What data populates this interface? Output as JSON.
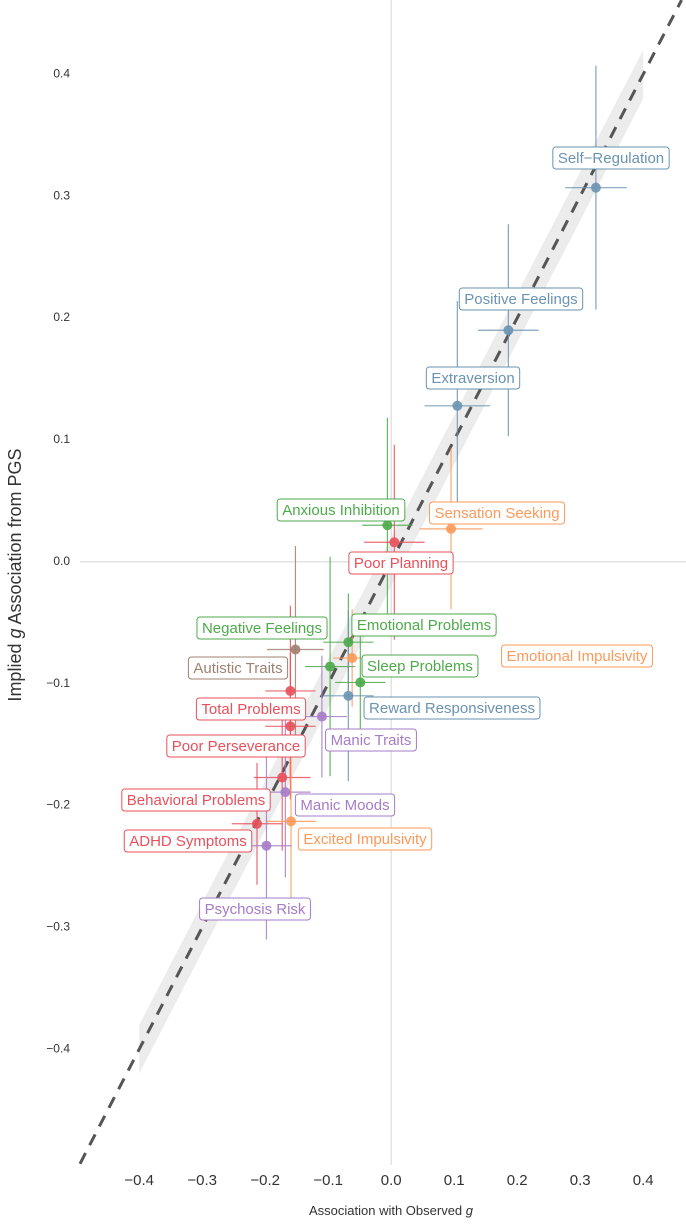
{
  "chart_data": {
    "type": "scatter",
    "x_label": "Association with Observed g",
    "y_label": "Implied g Association from PGS",
    "xlim": [
      -0.494,
      0.468
    ],
    "ylim": [
      -0.495,
      0.461
    ],
    "xticks": [
      {
        "value": -0.4,
        "label": "−0.4"
      },
      {
        "value": -0.3,
        "label": "−0.3"
      },
      {
        "value": -0.2,
        "label": "−0.2"
      },
      {
        "value": -0.1,
        "label": "−0.1"
      },
      {
        "value": 0,
        "label": "0.0"
      },
      0.1,
      0.2,
      0.3,
      0.4
    ],
    "yticks": [
      {
        "value": -0.4,
        "label": "−0.4"
      },
      {
        "value": -0.3,
        "label": "−0.3"
      },
      {
        "value": -0.2,
        "label": "−0.2"
      },
      {
        "value": -0.1,
        "label": "−0.1"
      },
      {
        "value": 0,
        "label": "0.0"
      },
      0.1,
      0.2,
      0.3,
      0.4
    ],
    "zero_lines": true,
    "fit": {
      "slope": 1,
      "intercept": 0,
      "band": 0.02,
      "band_x": [
        -0.4,
        0.4
      ]
    },
    "points": [
      {
        "name": "Self−Regulation",
        "color": "#6a93b2",
        "x": 0.325,
        "y": 0.307,
        "xerr": 0.049,
        "yerr": 0.1
      },
      {
        "name": "Positive Feelings",
        "color": "#6a93b2",
        "x": 0.186,
        "y": 0.19,
        "xerr": 0.048,
        "yerr": 0.087
      },
      {
        "name": "Extraversion",
        "color": "#6a93b2",
        "x": 0.105,
        "y": 0.128,
        "xerr": 0.052,
        "yerr": 0.086
      },
      {
        "name": "Anxious Inhibition",
        "color": "#4daa4a",
        "x": -0.006,
        "y": 0.03,
        "xerr": 0.04,
        "yerr": 0.088
      },
      {
        "name": "Sensation Seeking",
        "color": "#fb9a5a",
        "x": 0.095,
        "y": 0.027,
        "xerr": 0.05,
        "yerr": 0.066
      },
      {
        "name": "Poor Planning",
        "color": "#e8505b",
        "x": 0.005,
        "y": 0.016,
        "xerr": 0.048,
        "yerr": 0.08
      },
      {
        "name": "Emotional Problems",
        "color": "#4daa4a",
        "x": -0.068,
        "y": -0.066,
        "xerr": 0.04,
        "yerr": 0.04
      },
      {
        "name": "Emotional Impulsivity",
        "color": "#fb9a5a",
        "x": -0.062,
        "y": -0.079,
        "xerr": 0.03,
        "yerr": 0.04
      },
      {
        "name": "Negative Feelings",
        "color": "#4daa4a",
        "x": -0.097,
        "y": -0.086,
        "xerr": 0.04,
        "yerr": 0.09
      },
      {
        "name": "Autistic Traits",
        "color": "#a08070",
        "x": -0.152,
        "y": -0.072,
        "xerr": 0.045,
        "yerr": 0.085
      },
      {
        "name": "Sleep Problems",
        "color": "#4daa4a",
        "x": -0.049,
        "y": -0.099,
        "xerr": 0.04,
        "yerr": 0.05
      },
      {
        "name": "Reward Responsiveness",
        "color": "#6a93b2",
        "x": -0.068,
        "y": -0.11,
        "xerr": 0.04,
        "yerr": 0.07
      },
      {
        "name": "Total Problems",
        "color": "#e8505b",
        "x": -0.16,
        "y": -0.106,
        "xerr": 0.04,
        "yerr": 0.07
      },
      {
        "name": "Manic Traits",
        "color": "#a67bc8",
        "x": -0.11,
        "y": -0.127,
        "xerr": 0.04,
        "yerr": 0.05
      },
      {
        "name": "Poor Perseverance",
        "color": "#e8505b",
        "x": -0.16,
        "y": -0.135,
        "xerr": 0.04,
        "yerr": 0.06
      },
      {
        "name": "Behavioral Problems",
        "color": "#e8505b",
        "x": -0.173,
        "y": -0.177,
        "xerr": 0.045,
        "yerr": 0.06
      },
      {
        "name": "Manic Moods",
        "color": "#a67bc8",
        "x": -0.168,
        "y": -0.189,
        "xerr": 0.04,
        "yerr": 0.07
      },
      {
        "name": "Excited Impulsivity",
        "color": "#fb9a5a",
        "x": -0.159,
        "y": -0.213,
        "xerr": 0.04,
        "yerr": 0.07
      },
      {
        "name": "ADHD Symptoms",
        "color": "#e8505b",
        "x": -0.213,
        "y": -0.215,
        "xerr": 0.04,
        "yerr": 0.05
      },
      {
        "name": "Psychosis Risk",
        "color": "#a67bc8",
        "x": -0.198,
        "y": -0.233,
        "xerr": 0.04,
        "yerr": 0.077
      }
    ]
  }
}
